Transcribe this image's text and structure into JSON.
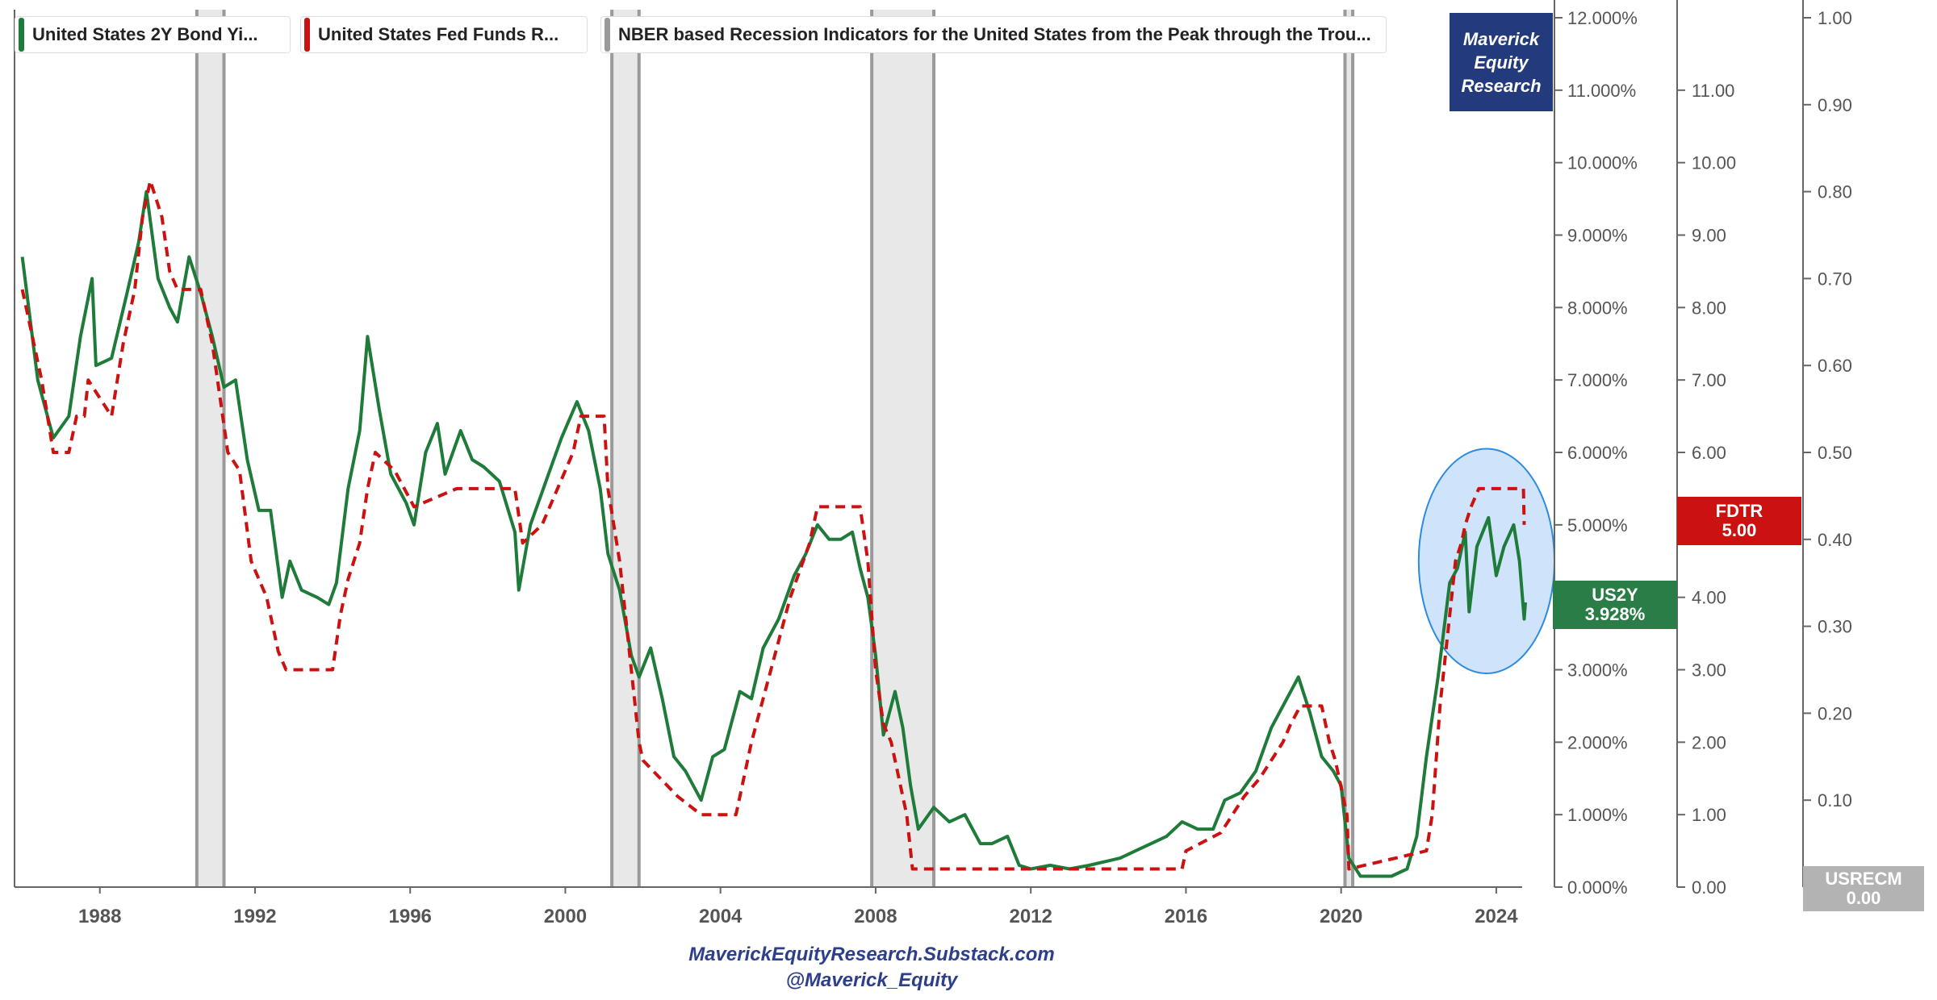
{
  "legend": [
    {
      "label": "United States 2Y Bond Yi...",
      "color": "#1e7b3a"
    },
    {
      "label": "United States Fed Funds R...",
      "color": "#cc1111"
    },
    {
      "label": "NBER based Recession Indicators for the United States from the Peak through the Trou...",
      "color": "#9a9a9a"
    }
  ],
  "brand": {
    "line1": "Maverick",
    "line2": "Equity",
    "line3": "Research"
  },
  "tags": {
    "fdtr": {
      "name": "FDTR",
      "value": "5.00",
      "color": "#cc1111"
    },
    "us2y": {
      "name": "US2Y",
      "value": "3.928%",
      "color": "#2a7d46"
    },
    "usrecm": {
      "name": "USRECM",
      "value": "0.00",
      "color": "#b3b3b3"
    }
  },
  "footer": {
    "line1": "MaverickEquityResearch.Substack.com",
    "line2": "@Maverick_Equity"
  },
  "colors": {
    "yield": "#1e7b3a",
    "fedfunds": "#cc1111",
    "recession_fill": "#e8e8e8",
    "recession_edge": "#9a9a9a",
    "highlight_fill": "#cfe4fb",
    "highlight_stroke": "#2a8be0"
  },
  "axes": {
    "x_ticks": [
      "1988",
      "1992",
      "1996",
      "2000",
      "2004",
      "2008",
      "2012",
      "2016",
      "2020",
      "2024"
    ],
    "y_left_ticks": [
      "0.000%",
      "1.000%",
      "2.000%",
      "3.000%",
      "4.000%",
      "5.000%",
      "6.000%",
      "7.000%",
      "8.000%",
      "9.000%",
      "10.000%",
      "11.000%",
      "12.000%"
    ],
    "y_mid_ticks": [
      "0.00",
      "1.00",
      "2.00",
      "3.00",
      "4.00",
      "5.00",
      "6.00",
      "7.00",
      "8.00",
      "9.00",
      "10.00",
      "11.00"
    ],
    "y_right_ticks": [
      "0.00",
      "0.10",
      "0.20",
      "0.30",
      "0.40",
      "0.50",
      "0.60",
      "0.70",
      "0.80",
      "0.90",
      "1.00"
    ]
  },
  "chart_data": {
    "type": "line",
    "x_range": [
      1985.8,
      2025.5
    ],
    "y_range": [
      0,
      12
    ],
    "y_mid_range": [
      0,
      12
    ],
    "y_right_range": [
      0,
      1
    ],
    "grid": false,
    "legend_position": "top-left",
    "series": [
      {
        "name": "United States 2Y Bond Yi...",
        "style": "solid",
        "points": [
          [
            1986.0,
            8.7
          ],
          [
            1986.4,
            7.0
          ],
          [
            1986.8,
            6.2
          ],
          [
            1987.2,
            6.5
          ],
          [
            1987.5,
            7.6
          ],
          [
            1987.8,
            8.4
          ],
          [
            1987.9,
            7.2
          ],
          [
            1988.3,
            7.3
          ],
          [
            1988.7,
            8.2
          ],
          [
            1989.0,
            8.9
          ],
          [
            1989.2,
            9.6
          ],
          [
            1989.5,
            8.4
          ],
          [
            1989.8,
            8.0
          ],
          [
            1990.0,
            7.8
          ],
          [
            1990.3,
            8.7
          ],
          [
            1990.6,
            8.2
          ],
          [
            1990.9,
            7.6
          ],
          [
            1991.2,
            6.9
          ],
          [
            1991.5,
            7.0
          ],
          [
            1991.8,
            5.9
          ],
          [
            1992.1,
            5.2
          ],
          [
            1992.4,
            5.2
          ],
          [
            1992.7,
            4.0
          ],
          [
            1992.9,
            4.5
          ],
          [
            1993.2,
            4.1
          ],
          [
            1993.6,
            4.0
          ],
          [
            1993.9,
            3.9
          ],
          [
            1994.1,
            4.2
          ],
          [
            1994.4,
            5.5
          ],
          [
            1994.7,
            6.3
          ],
          [
            1994.9,
            7.6
          ],
          [
            1995.2,
            6.6
          ],
          [
            1995.5,
            5.7
          ],
          [
            1995.9,
            5.3
          ],
          [
            1996.1,
            5.0
          ],
          [
            1996.4,
            6.0
          ],
          [
            1996.7,
            6.4
          ],
          [
            1996.9,
            5.7
          ],
          [
            1997.3,
            6.3
          ],
          [
            1997.6,
            5.9
          ],
          [
            1997.9,
            5.8
          ],
          [
            1998.3,
            5.6
          ],
          [
            1998.7,
            4.9
          ],
          [
            1998.8,
            4.1
          ],
          [
            1999.1,
            5.0
          ],
          [
            1999.5,
            5.6
          ],
          [
            1999.9,
            6.2
          ],
          [
            2000.3,
            6.7
          ],
          [
            2000.6,
            6.3
          ],
          [
            2000.9,
            5.5
          ],
          [
            2001.1,
            4.6
          ],
          [
            2001.4,
            4.1
          ],
          [
            2001.7,
            3.2
          ],
          [
            2001.9,
            2.9
          ],
          [
            2002.2,
            3.3
          ],
          [
            2002.5,
            2.6
          ],
          [
            2002.8,
            1.8
          ],
          [
            2003.1,
            1.6
          ],
          [
            2003.5,
            1.2
          ],
          [
            2003.8,
            1.8
          ],
          [
            2004.1,
            1.9
          ],
          [
            2004.5,
            2.7
          ],
          [
            2004.8,
            2.6
          ],
          [
            2005.1,
            3.3
          ],
          [
            2005.5,
            3.7
          ],
          [
            2005.9,
            4.3
          ],
          [
            2006.2,
            4.6
          ],
          [
            2006.5,
            5.0
          ],
          [
            2006.8,
            4.8
          ],
          [
            2007.1,
            4.8
          ],
          [
            2007.4,
            4.9
          ],
          [
            2007.6,
            4.4
          ],
          [
            2007.8,
            4.0
          ],
          [
            2008.0,
            3.2
          ],
          [
            2008.2,
            2.1
          ],
          [
            2008.5,
            2.7
          ],
          [
            2008.7,
            2.2
          ],
          [
            2008.9,
            1.4
          ],
          [
            2009.1,
            0.8
          ],
          [
            2009.5,
            1.1
          ],
          [
            2009.9,
            0.9
          ],
          [
            2010.3,
            1.0
          ],
          [
            2010.7,
            0.6
          ],
          [
            2011.0,
            0.6
          ],
          [
            2011.4,
            0.7
          ],
          [
            2011.7,
            0.3
          ],
          [
            2012.0,
            0.25
          ],
          [
            2012.5,
            0.3
          ],
          [
            2013.0,
            0.25
          ],
          [
            2013.5,
            0.3
          ],
          [
            2013.9,
            0.35
          ],
          [
            2014.3,
            0.4
          ],
          [
            2014.7,
            0.5
          ],
          [
            2015.1,
            0.6
          ],
          [
            2015.5,
            0.7
          ],
          [
            2015.9,
            0.9
          ],
          [
            2016.3,
            0.8
          ],
          [
            2016.7,
            0.8
          ],
          [
            2017.0,
            1.2
          ],
          [
            2017.4,
            1.3
          ],
          [
            2017.8,
            1.6
          ],
          [
            2018.2,
            2.2
          ],
          [
            2018.6,
            2.6
          ],
          [
            2018.9,
            2.9
          ],
          [
            2019.2,
            2.4
          ],
          [
            2019.5,
            1.8
          ],
          [
            2019.8,
            1.6
          ],
          [
            2020.0,
            1.4
          ],
          [
            2020.2,
            0.4
          ],
          [
            2020.5,
            0.15
          ],
          [
            2020.9,
            0.15
          ],
          [
            2021.3,
            0.15
          ],
          [
            2021.7,
            0.25
          ],
          [
            2021.95,
            0.7
          ],
          [
            2022.2,
            1.8
          ],
          [
            2022.5,
            2.9
          ],
          [
            2022.8,
            4.2
          ],
          [
            2023.0,
            4.4
          ],
          [
            2023.2,
            4.9
          ],
          [
            2023.3,
            3.8
          ],
          [
            2023.5,
            4.7
          ],
          [
            2023.8,
            5.1
          ],
          [
            2024.0,
            4.3
          ],
          [
            2024.2,
            4.7
          ],
          [
            2024.45,
            5.0
          ],
          [
            2024.6,
            4.5
          ],
          [
            2024.72,
            3.7
          ],
          [
            2024.75,
            3.93
          ]
        ]
      },
      {
        "name": "United States Fed Funds R...",
        "style": "dashed",
        "points": [
          [
            1986.0,
            8.25
          ],
          [
            1986.2,
            7.75
          ],
          [
            1986.5,
            7.0
          ],
          [
            1986.8,
            6.0
          ],
          [
            1987.2,
            6.0
          ],
          [
            1987.4,
            6.5
          ],
          [
            1987.6,
            6.5
          ],
          [
            1987.7,
            7.0
          ],
          [
            1988.0,
            6.75
          ],
          [
            1988.3,
            6.5
          ],
          [
            1988.6,
            7.5
          ],
          [
            1988.9,
            8.25
          ],
          [
            1989.1,
            9.25
          ],
          [
            1989.3,
            9.75
          ],
          [
            1989.6,
            9.25
          ],
          [
            1989.8,
            8.5
          ],
          [
            1990.0,
            8.25
          ],
          [
            1990.6,
            8.25
          ],
          [
            1990.9,
            7.5
          ],
          [
            1991.1,
            6.75
          ],
          [
            1991.3,
            6.0
          ],
          [
            1991.6,
            5.75
          ],
          [
            1991.9,
            4.5
          ],
          [
            1992.3,
            4.0
          ],
          [
            1992.6,
            3.25
          ],
          [
            1992.8,
            3.0
          ],
          [
            1994.0,
            3.0
          ],
          [
            1994.2,
            3.75
          ],
          [
            1994.4,
            4.25
          ],
          [
            1994.7,
            4.75
          ],
          [
            1994.9,
            5.5
          ],
          [
            1995.1,
            6.0
          ],
          [
            1995.6,
            5.75
          ],
          [
            1996.1,
            5.25
          ],
          [
            1997.2,
            5.5
          ],
          [
            1998.7,
            5.5
          ],
          [
            1998.9,
            4.75
          ],
          [
            1999.4,
            5.0
          ],
          [
            1999.8,
            5.5
          ],
          [
            2000.2,
            6.0
          ],
          [
            2000.4,
            6.5
          ],
          [
            2001.0,
            6.5
          ],
          [
            2001.1,
            5.5
          ],
          [
            2001.4,
            4.5
          ],
          [
            2001.6,
            3.5
          ],
          [
            2001.9,
            2.0
          ],
          [
            2002.0,
            1.75
          ],
          [
            2002.9,
            1.25
          ],
          [
            2003.5,
            1.0
          ],
          [
            2004.4,
            1.0
          ],
          [
            2004.8,
            2.0
          ],
          [
            2005.3,
            3.0
          ],
          [
            2005.8,
            4.0
          ],
          [
            2006.3,
            4.75
          ],
          [
            2006.5,
            5.25
          ],
          [
            2007.6,
            5.25
          ],
          [
            2007.8,
            4.5
          ],
          [
            2008.0,
            3.0
          ],
          [
            2008.2,
            2.25
          ],
          [
            2008.4,
            2.0
          ],
          [
            2008.8,
            1.0
          ],
          [
            2008.95,
            0.25
          ],
          [
            2015.9,
            0.25
          ],
          [
            2016.0,
            0.5
          ],
          [
            2016.9,
            0.75
          ],
          [
            2017.2,
            1.0
          ],
          [
            2017.5,
            1.25
          ],
          [
            2017.9,
            1.5
          ],
          [
            2018.2,
            1.75
          ],
          [
            2018.5,
            2.0
          ],
          [
            2018.7,
            2.25
          ],
          [
            2018.95,
            2.5
          ],
          [
            2019.5,
            2.5
          ],
          [
            2019.6,
            2.25
          ],
          [
            2019.7,
            2.0
          ],
          [
            2019.85,
            1.75
          ],
          [
            2020.15,
            1.0
          ],
          [
            2020.2,
            0.25
          ],
          [
            2022.2,
            0.5
          ],
          [
            2022.35,
            1.0
          ],
          [
            2022.45,
            1.75
          ],
          [
            2022.55,
            2.5
          ],
          [
            2022.7,
            3.25
          ],
          [
            2022.85,
            4.0
          ],
          [
            2022.95,
            4.5
          ],
          [
            2023.1,
            4.75
          ],
          [
            2023.2,
            5.0
          ],
          [
            2023.35,
            5.25
          ],
          [
            2023.55,
            5.5
          ],
          [
            2024.7,
            5.5
          ],
          [
            2024.72,
            5.0
          ]
        ]
      }
    ],
    "recessions": [
      [
        1990.5,
        1991.2
      ],
      [
        2001.2,
        2001.9
      ],
      [
        2007.9,
        2009.5
      ],
      [
        2020.1,
        2020.3
      ]
    ],
    "highlight": {
      "center_x": 2023.75,
      "center_y": 4.5,
      "half_width_years": 1.75,
      "half_height": 1.55
    }
  }
}
